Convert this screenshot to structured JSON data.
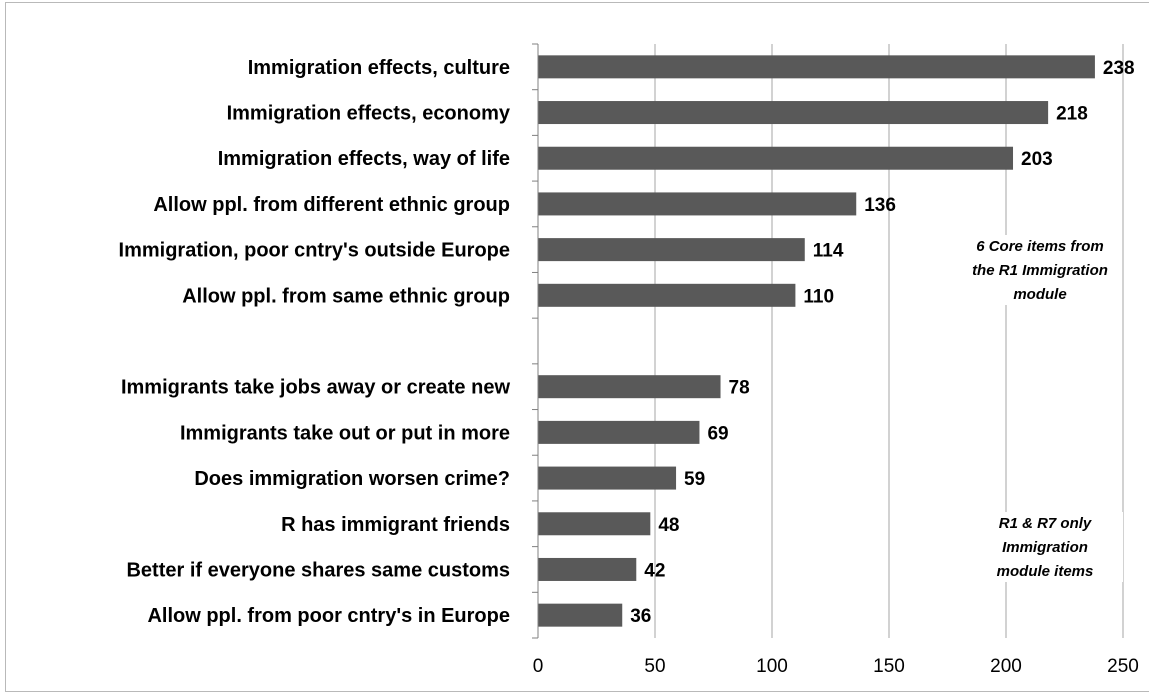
{
  "chart_data": {
    "type": "bar",
    "orientation": "horizontal",
    "title": "",
    "xlabel": "",
    "ylabel": "",
    "xlim": [
      0,
      250
    ],
    "x_ticks": [
      0,
      50,
      100,
      150,
      200,
      250
    ],
    "grid": "vertical",
    "legend": "none",
    "bar_color": "#595959",
    "categories": [
      "Immigration effects, culture",
      "Immigration effects, economy",
      "Immigration effects, way of life",
      "Allow ppl. from different ethnic group",
      "Immigration, poor cntry's outside Europe",
      "Allow ppl. from same ethnic group",
      "",
      "Immigrants take jobs away or create new",
      "Immigrants take out or put in more",
      "Does immigration worsen crime?",
      "R has immigrant friends",
      "Better if everyone shares same customs",
      "Allow ppl. from poor cntry's in Europe"
    ],
    "values": [
      238,
      218,
      203,
      136,
      114,
      110,
      null,
      78,
      69,
      59,
      48,
      42,
      36
    ],
    "annotations": [
      {
        "group": "core",
        "lines": [
          "6 Core items from",
          "the R1 Immigration",
          "module"
        ]
      },
      {
        "group": "r1r7",
        "lines": [
          "R1 & R7 only",
          "Immigration",
          "module items"
        ]
      }
    ]
  }
}
